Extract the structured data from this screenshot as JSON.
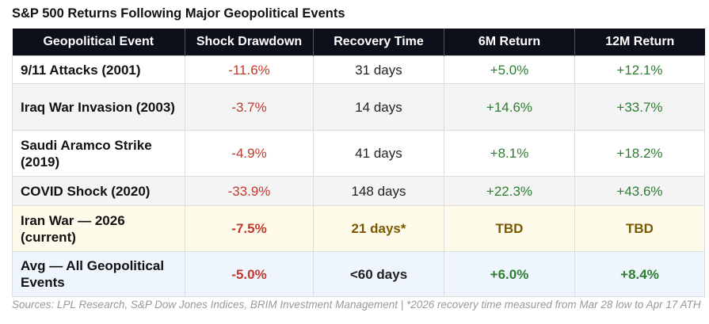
{
  "title": "S&P 500 Returns Following Major Geopolitical Events",
  "columns": [
    "Geopolitical Event",
    "Shock Drawdown",
    "Recovery Time",
    "6M Return",
    "12M Return"
  ],
  "rows": [
    {
      "event": "9/11 Attacks (2001)",
      "drawdown": "-11.6%",
      "recovery": "31 days",
      "r6m": "+5.0%",
      "r12m": "+12.1%"
    },
    {
      "event": "Iraq War Invasion (2003)",
      "drawdown": "-3.7%",
      "recovery": "14 days",
      "r6m": "+14.6%",
      "r12m": "+33.7%"
    },
    {
      "event": "Saudi Aramco Strike (2019)",
      "drawdown": "-4.9%",
      "recovery": "41 days",
      "r6m": "+8.1%",
      "r12m": "+18.2%"
    },
    {
      "event": "COVID Shock (2020)",
      "drawdown": "-33.9%",
      "recovery": "148 days",
      "r6m": "+22.3%",
      "r12m": "+43.6%"
    },
    {
      "event": "Iran War — 2026 (current)",
      "drawdown": "-7.5%",
      "recovery": "21 days*",
      "r6m": "TBD",
      "r12m": "TBD"
    },
    {
      "event": "Avg — All Geopolitical Events",
      "drawdown": "-5.0%",
      "recovery": "<60 days",
      "r6m": "+6.0%",
      "r12m": "+8.4%"
    }
  ],
  "source": "Sources: LPL Research, S&P Dow Jones Indices, BRIM Investment Management | *2026 recovery time measured from Mar 28 low to Apr 17 ATH",
  "colors": {
    "header": "#0d0f1a",
    "negative": "#c0392b",
    "positive": "#2e7d32",
    "tbd": "#7a5a00",
    "current_row": "#fffbea",
    "avg_row": "#eef5fc"
  }
}
